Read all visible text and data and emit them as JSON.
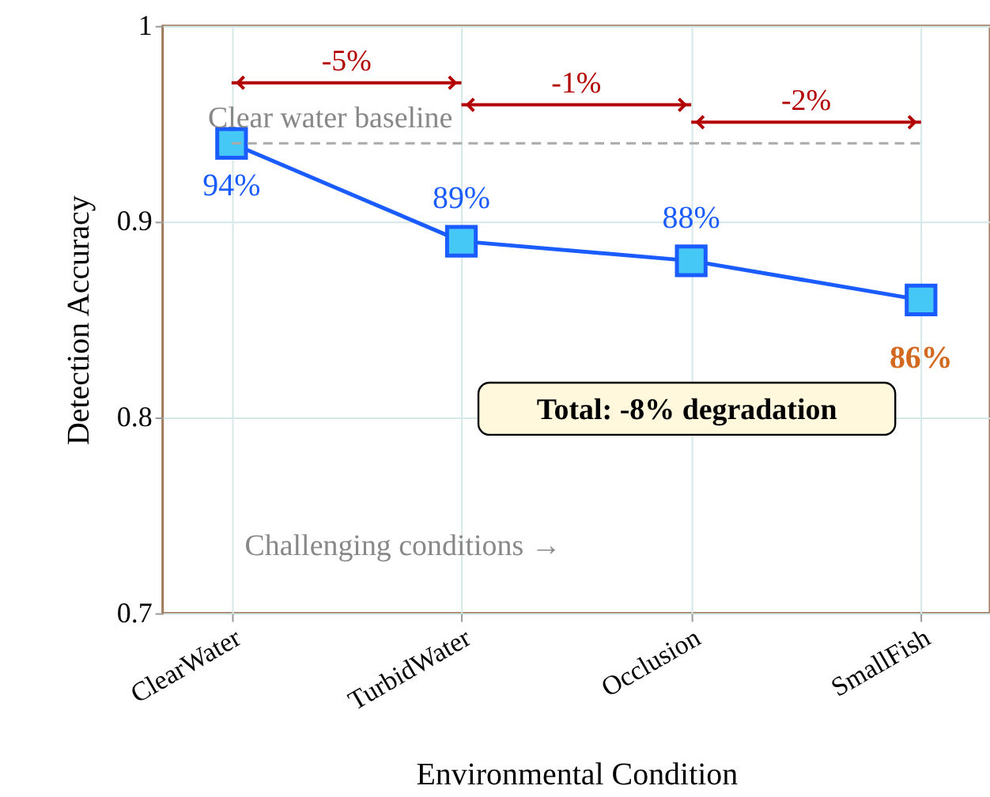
{
  "chart_data": {
    "type": "line",
    "xlabel": "Environmental Condition",
    "ylabel": "Detection Accuracy",
    "categories": [
      "ClearWater",
      "TurbidWater",
      "Occlusion",
      "SmallFish"
    ],
    "series": [
      {
        "color": "#1a5cff",
        "values": [
          0.94,
          0.89,
          0.88,
          0.86
        ],
        "value_labels": [
          "94%",
          "89%",
          "88%",
          "86%"
        ]
      }
    ],
    "ylim": [
      0.7,
      1.0
    ],
    "yticks": [
      0.7,
      0.8,
      0.9,
      1
    ],
    "grid": true,
    "marker": "square",
    "line_style": "solid",
    "ref_lines": [
      {
        "axis": "y",
        "value": 0.94,
        "label": "Clear water baseline",
        "color": "#aaaaaa",
        "line_style": "dashed"
      }
    ],
    "annotations": [
      "-5%",
      "-1%",
      "-2%",
      "Total: -8% degradation",
      "Challenging conditions →"
    ]
  }
}
